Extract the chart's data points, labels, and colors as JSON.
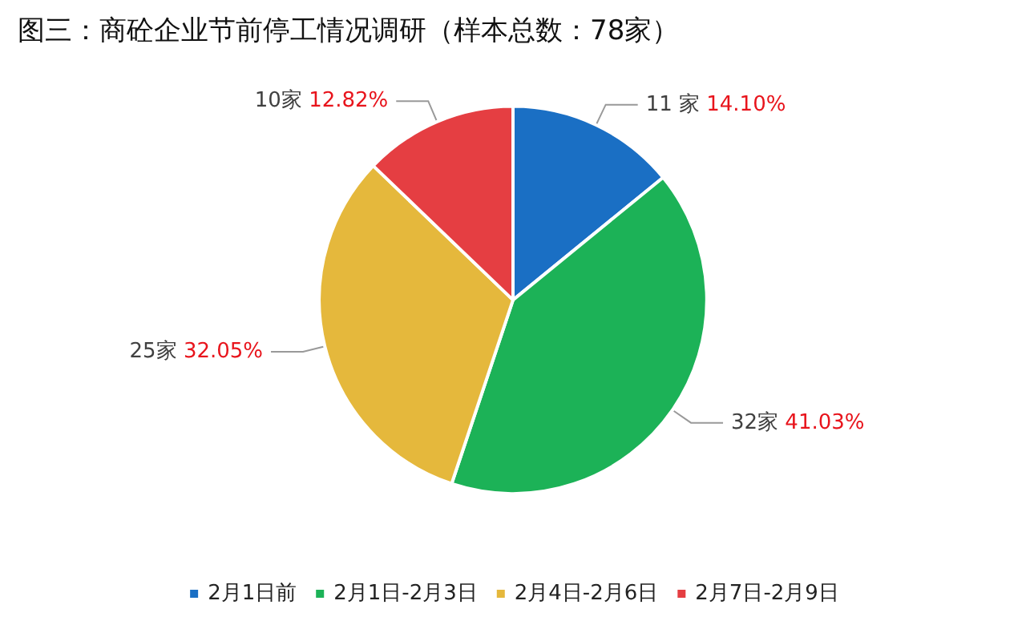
{
  "chart_data": {
    "type": "pie",
    "title": "图三：商砼企业节前停工情况调研（样本总数：78家）",
    "categories": [
      "2月1日前",
      "2月1日-2月3日",
      "2月4日-2月6日",
      "2月7日-2月9日"
    ],
    "values": [
      11,
      32,
      25,
      10
    ],
    "colors": [
      "#1a6fc4",
      "#1cb257",
      "#e5b83c",
      "#e53e42"
    ],
    "value_labels": [
      "11 家 14.10%",
      "32家 41.03%",
      "25家 32.05%",
      "10家 12.82%"
    ],
    "legend": "bottom"
  }
}
